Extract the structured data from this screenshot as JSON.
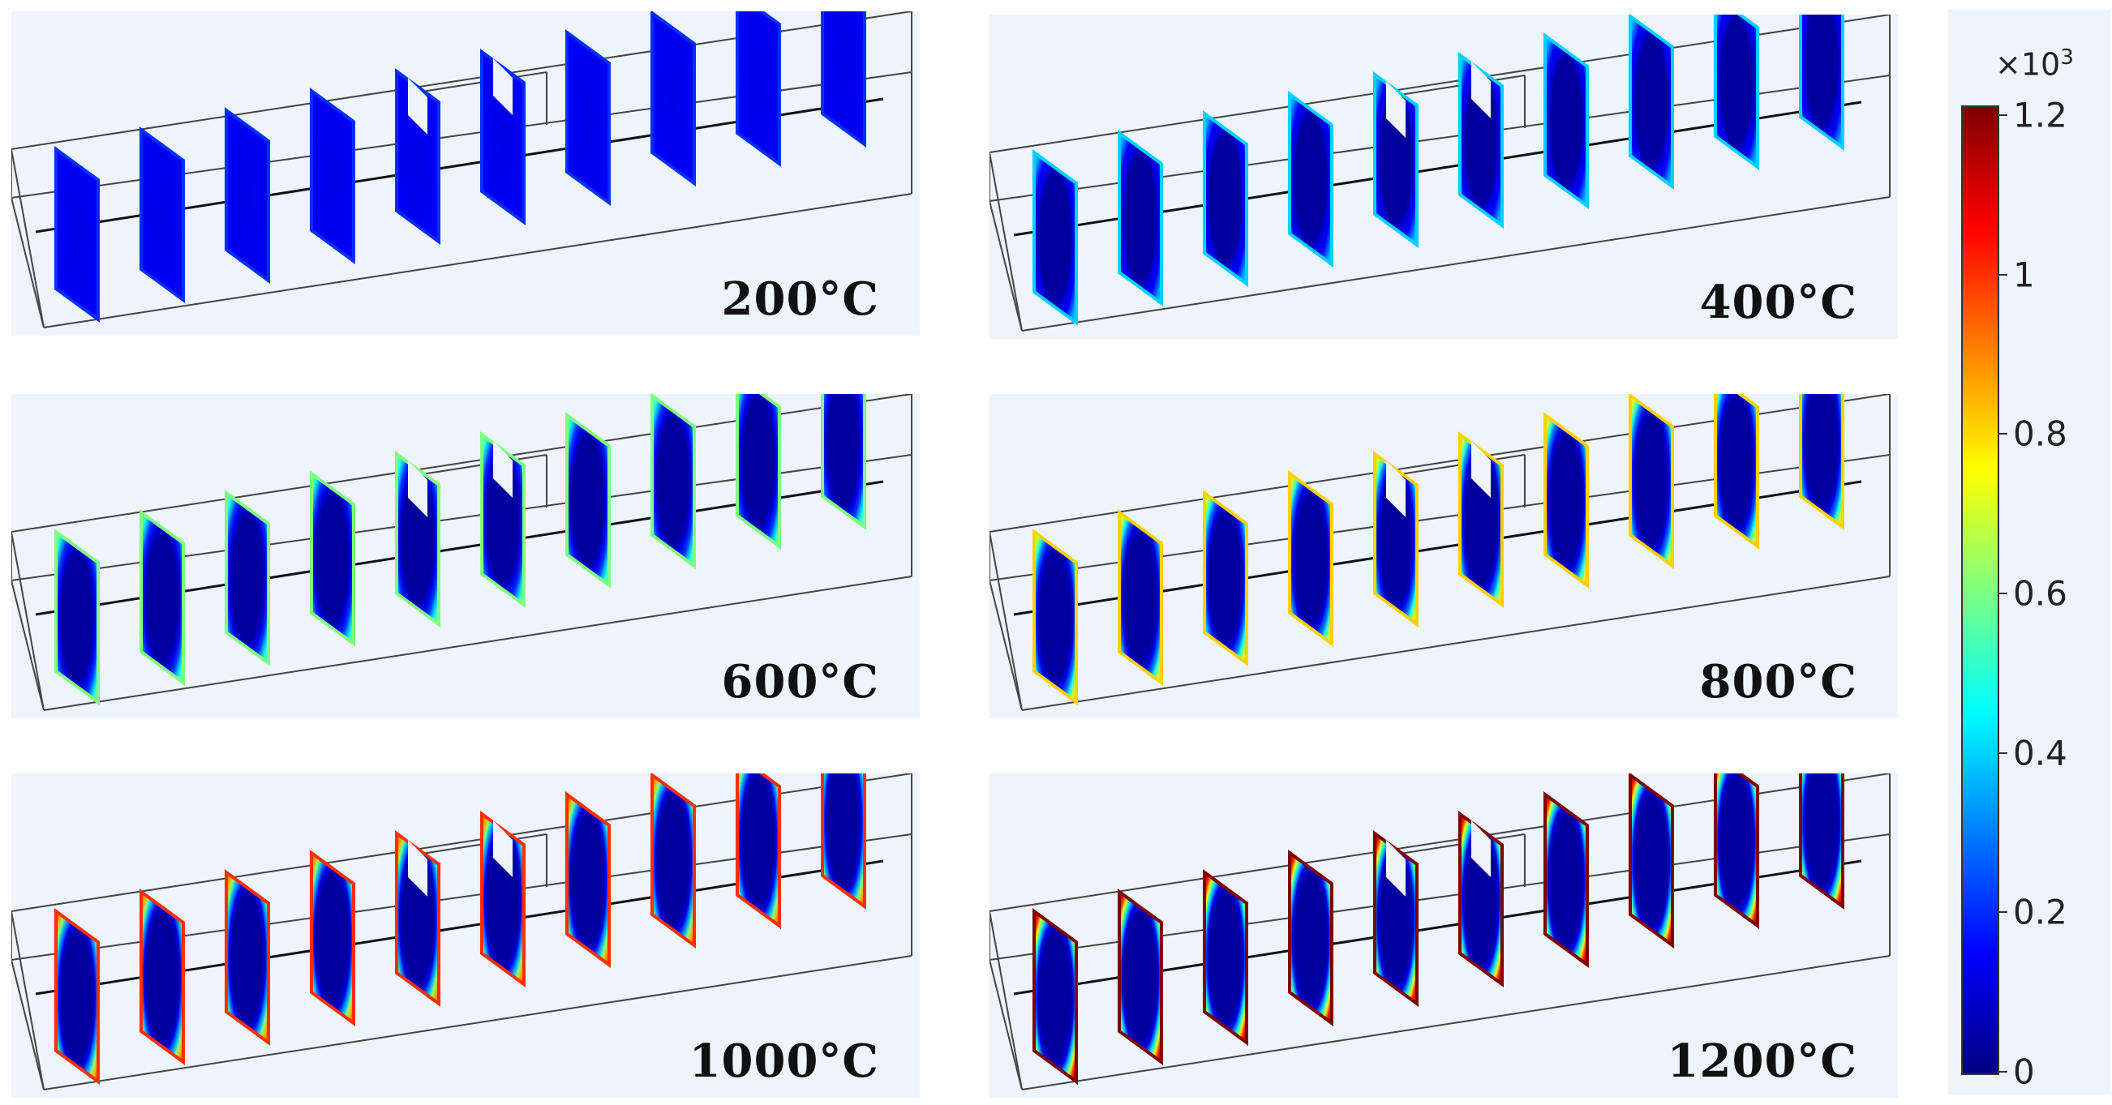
{
  "panels": [
    {
      "label": "200°C",
      "level": 0.17
    },
    {
      "label": "400°C",
      "level": 0.33
    },
    {
      "label": "600°C",
      "level": 0.5
    },
    {
      "label": "800°C",
      "level": 0.67
    },
    {
      "label": "1000°C",
      "level": 0.83
    },
    {
      "label": "1200°C",
      "level": 1.0
    }
  ],
  "colorbar": {
    "exponent_base": "×10",
    "exponent_power": "3",
    "ticks": [
      "1.2",
      "1",
      "0.8",
      "0.6",
      "0.4",
      "0.2",
      "0"
    ],
    "min": 0,
    "max": 1.2
  }
}
